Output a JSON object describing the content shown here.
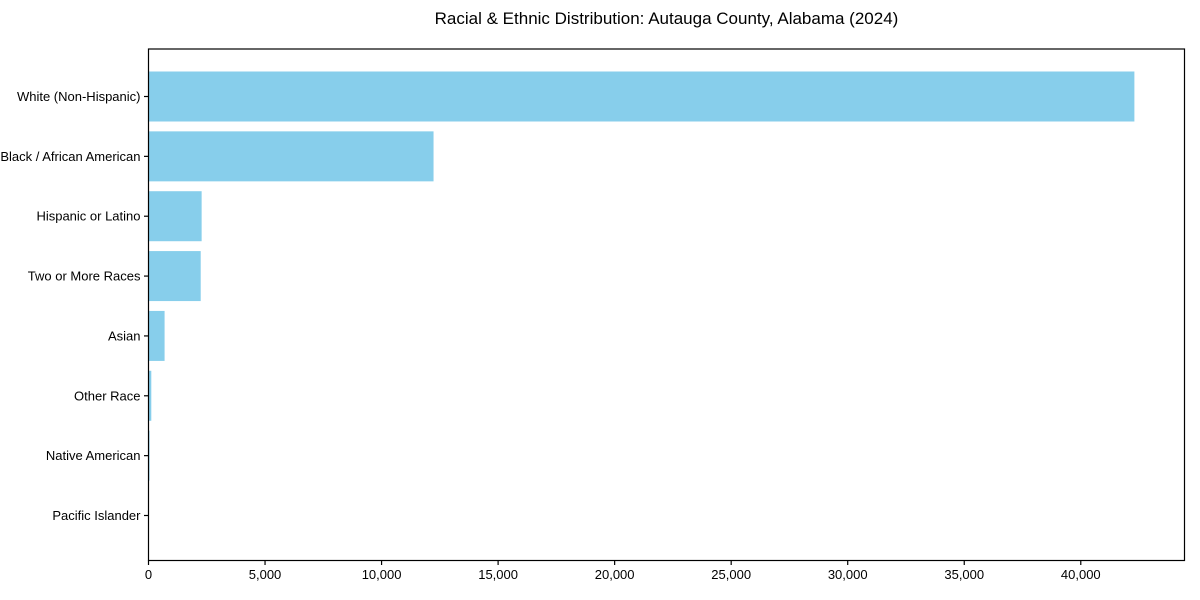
{
  "figure": {
    "background_color": "#ffffff"
  },
  "chart_data": {
    "type": "bar",
    "orientation": "horizontal",
    "title": "Racial & Ethnic Distribution: Autauga County, Alabama (2024)",
    "xlabel": "",
    "ylabel": "",
    "categories": [
      "White (Non-Hispanic)",
      "Black / African American",
      "Hispanic or Latino",
      "Two or More Races",
      "Asian",
      "Other Race",
      "Native American",
      "Pacific Islander"
    ],
    "values": [
      42300,
      12230,
      2280,
      2240,
      690,
      120,
      45,
      20
    ],
    "xlim": [
      0,
      44450
    ],
    "xticks": [
      0,
      5000,
      10000,
      15000,
      20000,
      25000,
      30000,
      35000,
      40000
    ],
    "xtick_label_format": "thousands-comma",
    "grid": false,
    "legend": null,
    "bar_color": "#87CEEB",
    "axis_color": "#000000",
    "text_color": "#000000"
  }
}
